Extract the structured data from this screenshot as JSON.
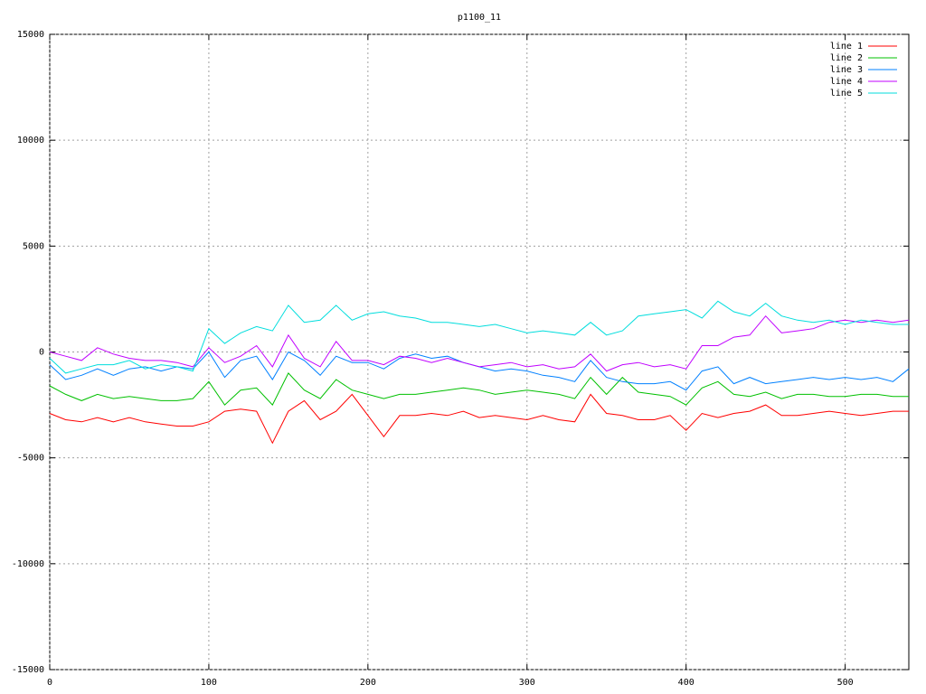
{
  "chart_data": {
    "type": "line",
    "title": "p1100_11",
    "grid": true,
    "legend": "top-right",
    "xlim": [
      0,
      540
    ],
    "xticks": [
      0,
      100,
      200,
      300,
      400,
      500
    ],
    "ylim": [
      -15000,
      15000
    ],
    "yticks": [
      -15000,
      -10000,
      -5000,
      0,
      5000,
      10000,
      15000
    ],
    "x": [
      0,
      10,
      20,
      30,
      40,
      50,
      60,
      70,
      80,
      90,
      100,
      110,
      120,
      130,
      140,
      150,
      160,
      170,
      180,
      190,
      200,
      210,
      220,
      230,
      240,
      250,
      260,
      270,
      280,
      290,
      300,
      310,
      320,
      330,
      340,
      350,
      360,
      370,
      380,
      390,
      400,
      410,
      420,
      430,
      440,
      450,
      460,
      470,
      480,
      490,
      500,
      510,
      520,
      530,
      540
    ],
    "series": [
      {
        "name": "line 1",
        "color": "#ff0000",
        "values": [
          -2900,
          -3200,
          -3300,
          -3100,
          -3300,
          -3100,
          -3300,
          -3400,
          -3500,
          -3500,
          -3300,
          -2800,
          -2700,
          -2800,
          -4300,
          -2800,
          -2300,
          -3200,
          -2800,
          -2000,
          -3000,
          -4000,
          -3000,
          -3000,
          -2900,
          -3000,
          -2800,
          -3100,
          -3000,
          -3100,
          -3200,
          -3000,
          -3200,
          -3300,
          -2000,
          -2900,
          -3000,
          -3200,
          -3200,
          -3000,
          -3700,
          -2900,
          -3100,
          -2900,
          -2800,
          -2500,
          -3000,
          -3000,
          -2900,
          -2800,
          -2900,
          -3000,
          -2900,
          -2800,
          -2800
        ]
      },
      {
        "name": "line 2",
        "color": "#00c000",
        "values": [
          -1600,
          -2000,
          -2300,
          -2000,
          -2200,
          -2100,
          -2200,
          -2300,
          -2300,
          -2200,
          -1400,
          -2500,
          -1800,
          -1700,
          -2500,
          -1000,
          -1800,
          -2200,
          -1300,
          -1800,
          -2000,
          -2200,
          -2000,
          -2000,
          -1900,
          -1800,
          -1700,
          -1800,
          -2000,
          -1900,
          -1800,
          -1900,
          -2000,
          -2200,
          -1200,
          -2000,
          -1200,
          -1900,
          -2000,
          -2100,
          -2500,
          -1700,
          -1400,
          -2000,
          -2100,
          -1900,
          -2200,
          -2000,
          -2000,
          -2100,
          -2100,
          -2000,
          -2000,
          -2100,
          -2100
        ]
      },
      {
        "name": "line 3",
        "color": "#0080ff",
        "values": [
          -600,
          -1300,
          -1100,
          -800,
          -1100,
          -800,
          -700,
          -900,
          -700,
          -800,
          0,
          -1200,
          -400,
          -200,
          -1300,
          0,
          -400,
          -1100,
          -200,
          -500,
          -500,
          -800,
          -300,
          -100,
          -300,
          -200,
          -500,
          -700,
          -900,
          -800,
          -900,
          -1100,
          -1200,
          -1400,
          -400,
          -1200,
          -1400,
          -1500,
          -1500,
          -1400,
          -1800,
          -900,
          -700,
          -1500,
          -1200,
          -1500,
          -1400,
          -1300,
          -1200,
          -1300,
          -1200,
          -1300,
          -1200,
          -1400,
          -800
        ]
      },
      {
        "name": "line 4",
        "color": "#c000ff",
        "values": [
          0,
          -200,
          -400,
          200,
          -100,
          -300,
          -400,
          -400,
          -500,
          -700,
          200,
          -500,
          -200,
          300,
          -700,
          800,
          -300,
          -700,
          500,
          -400,
          -400,
          -600,
          -200,
          -300,
          -500,
          -300,
          -500,
          -700,
          -600,
          -500,
          -700,
          -600,
          -800,
          -700,
          -100,
          -900,
          -600,
          -500,
          -700,
          -600,
          -800,
          300,
          300,
          700,
          800,
          1700,
          900,
          1000,
          1100,
          1400,
          1500,
          1400,
          1500,
          1400,
          1500
        ]
      },
      {
        "name": "line 5",
        "color": "#00dddd",
        "values": [
          -300,
          -1000,
          -800,
          -600,
          -600,
          -400,
          -800,
          -600,
          -700,
          -900,
          1100,
          400,
          900,
          1200,
          1000,
          2200,
          1400,
          1500,
          2200,
          1500,
          1800,
          1900,
          1700,
          1600,
          1400,
          1400,
          1300,
          1200,
          1300,
          1100,
          900,
          1000,
          900,
          800,
          1400,
          800,
          1000,
          1700,
          1800,
          1900,
          2000,
          1600,
          2400,
          1900,
          1700,
          2300,
          1700,
          1500,
          1400,
          1500,
          1300,
          1500,
          1400,
          1300,
          1300
        ]
      }
    ]
  }
}
